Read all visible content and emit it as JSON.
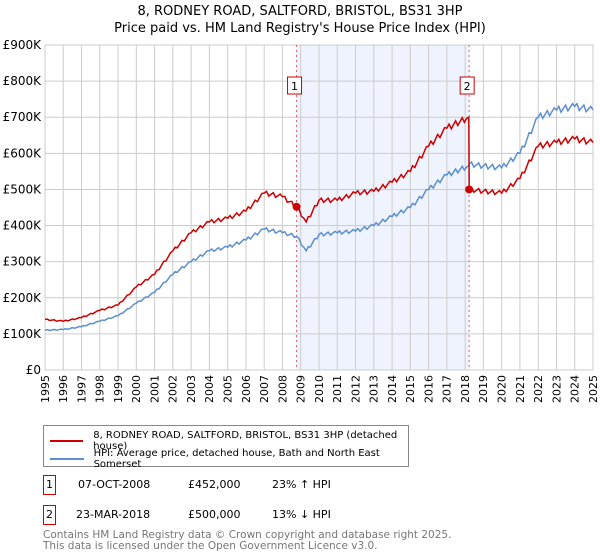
{
  "chart_data": {
    "type": "line",
    "title": "8, RODNEY ROAD, SALTFORD, BRISTOL, BS31 3HP",
    "subtitle": "Price paid vs. HM Land Registry's House Price Index (HPI)",
    "xlim": [
      1995,
      2025
    ],
    "ylim": [
      0,
      900000
    ],
    "x_ticks": [
      "1995",
      "1996",
      "1997",
      "1998",
      "1999",
      "2000",
      "2001",
      "2002",
      "2003",
      "2004",
      "2005",
      "2006",
      "2007",
      "2008",
      "2009",
      "2010",
      "2011",
      "2012",
      "2013",
      "2014",
      "2015",
      "2016",
      "2017",
      "2018",
      "2019",
      "2020",
      "2021",
      "2022",
      "2023",
      "2024",
      "2025"
    ],
    "y_ticks": [
      {
        "v": 0,
        "label": "£0"
      },
      {
        "v": 100000,
        "label": "£100K"
      },
      {
        "v": 200000,
        "label": "£200K"
      },
      {
        "v": 300000,
        "label": "£300K"
      },
      {
        "v": 400000,
        "label": "£400K"
      },
      {
        "v": 500000,
        "label": "£500K"
      },
      {
        "v": 600000,
        "label": "£600K"
      },
      {
        "v": 700000,
        "label": "£700K"
      },
      {
        "v": 800000,
        "label": "£800K"
      },
      {
        "v": 900000,
        "label": "£900K"
      }
    ],
    "grid": true,
    "shaded_range": [
      2008.77,
      2018.22
    ],
    "series": [
      {
        "name": "8, RODNEY ROAD, SALTFORD, BRISTOL, BS31 3HP (detached house)",
        "color": "#cc0000",
        "x": [
          1995,
          1996,
          1997,
          1998,
          1999,
          2000,
          2001,
          2002,
          2003,
          2004,
          2005,
          2006,
          2007,
          2008,
          2008.77,
          2009.3,
          2010,
          2011,
          2012,
          2013,
          2014,
          2015,
          2016,
          2017,
          2018.2,
          2018.22,
          2019,
          2020,
          2021,
          2022,
          2023,
          2024,
          2025
        ],
        "y": [
          140000,
          135000,
          145000,
          165000,
          180000,
          230000,
          265000,
          330000,
          380000,
          410000,
          420000,
          440000,
          490000,
          480000,
          452000,
          410000,
          470000,
          470000,
          490000,
          495000,
          520000,
          550000,
          620000,
          670000,
          700000,
          500000,
          495000,
          490000,
          530000,
          620000,
          630000,
          640000,
          630000
        ]
      },
      {
        "name": "HPI: Average price, detached house, Bath and North East Somerset",
        "color": "#5b8fd0",
        "x": [
          1995,
          1996,
          1997,
          1998,
          1999,
          2000,
          2001,
          2002,
          2003,
          2004,
          2005,
          2006,
          2007,
          2008,
          2008.77,
          2009.3,
          2010,
          2011,
          2012,
          2013,
          2014,
          2015,
          2016,
          2017,
          2018.2,
          2018.22,
          2019,
          2020,
          2021,
          2022,
          2023,
          2024,
          2025
        ],
        "y": [
          110000,
          112000,
          120000,
          135000,
          150000,
          185000,
          215000,
          265000,
          300000,
          330000,
          340000,
          360000,
          390000,
          380000,
          370000,
          330000,
          375000,
          380000,
          385000,
          400000,
          425000,
          450000,
          500000,
          540000,
          565000,
          570000,
          565000,
          560000,
          600000,
          700000,
          720000,
          730000,
          720000
        ]
      }
    ],
    "markers": [
      {
        "label": "1",
        "x": 2008.77,
        "y": 452000
      },
      {
        "label": "2",
        "x": 2018.22,
        "y": 500000
      }
    ]
  },
  "legend": {
    "red": "8, RODNEY ROAD, SALTFORD, BRISTOL, BS31 3HP (detached house)",
    "blue": "HPI: Average price, detached house, Bath and North East Somerset"
  },
  "transactions": [
    {
      "n": "1",
      "date": "07-OCT-2008",
      "price": "£452,000",
      "hpi": "23% ↑ HPI"
    },
    {
      "n": "2",
      "date": "23-MAR-2018",
      "price": "£500,000",
      "hpi": "13% ↓ HPI"
    }
  ],
  "footer": {
    "line1": "Contains HM Land Registry data © Crown copyright and database right 2025.",
    "line2": "This data is licensed under the Open Government Licence v3.0."
  }
}
